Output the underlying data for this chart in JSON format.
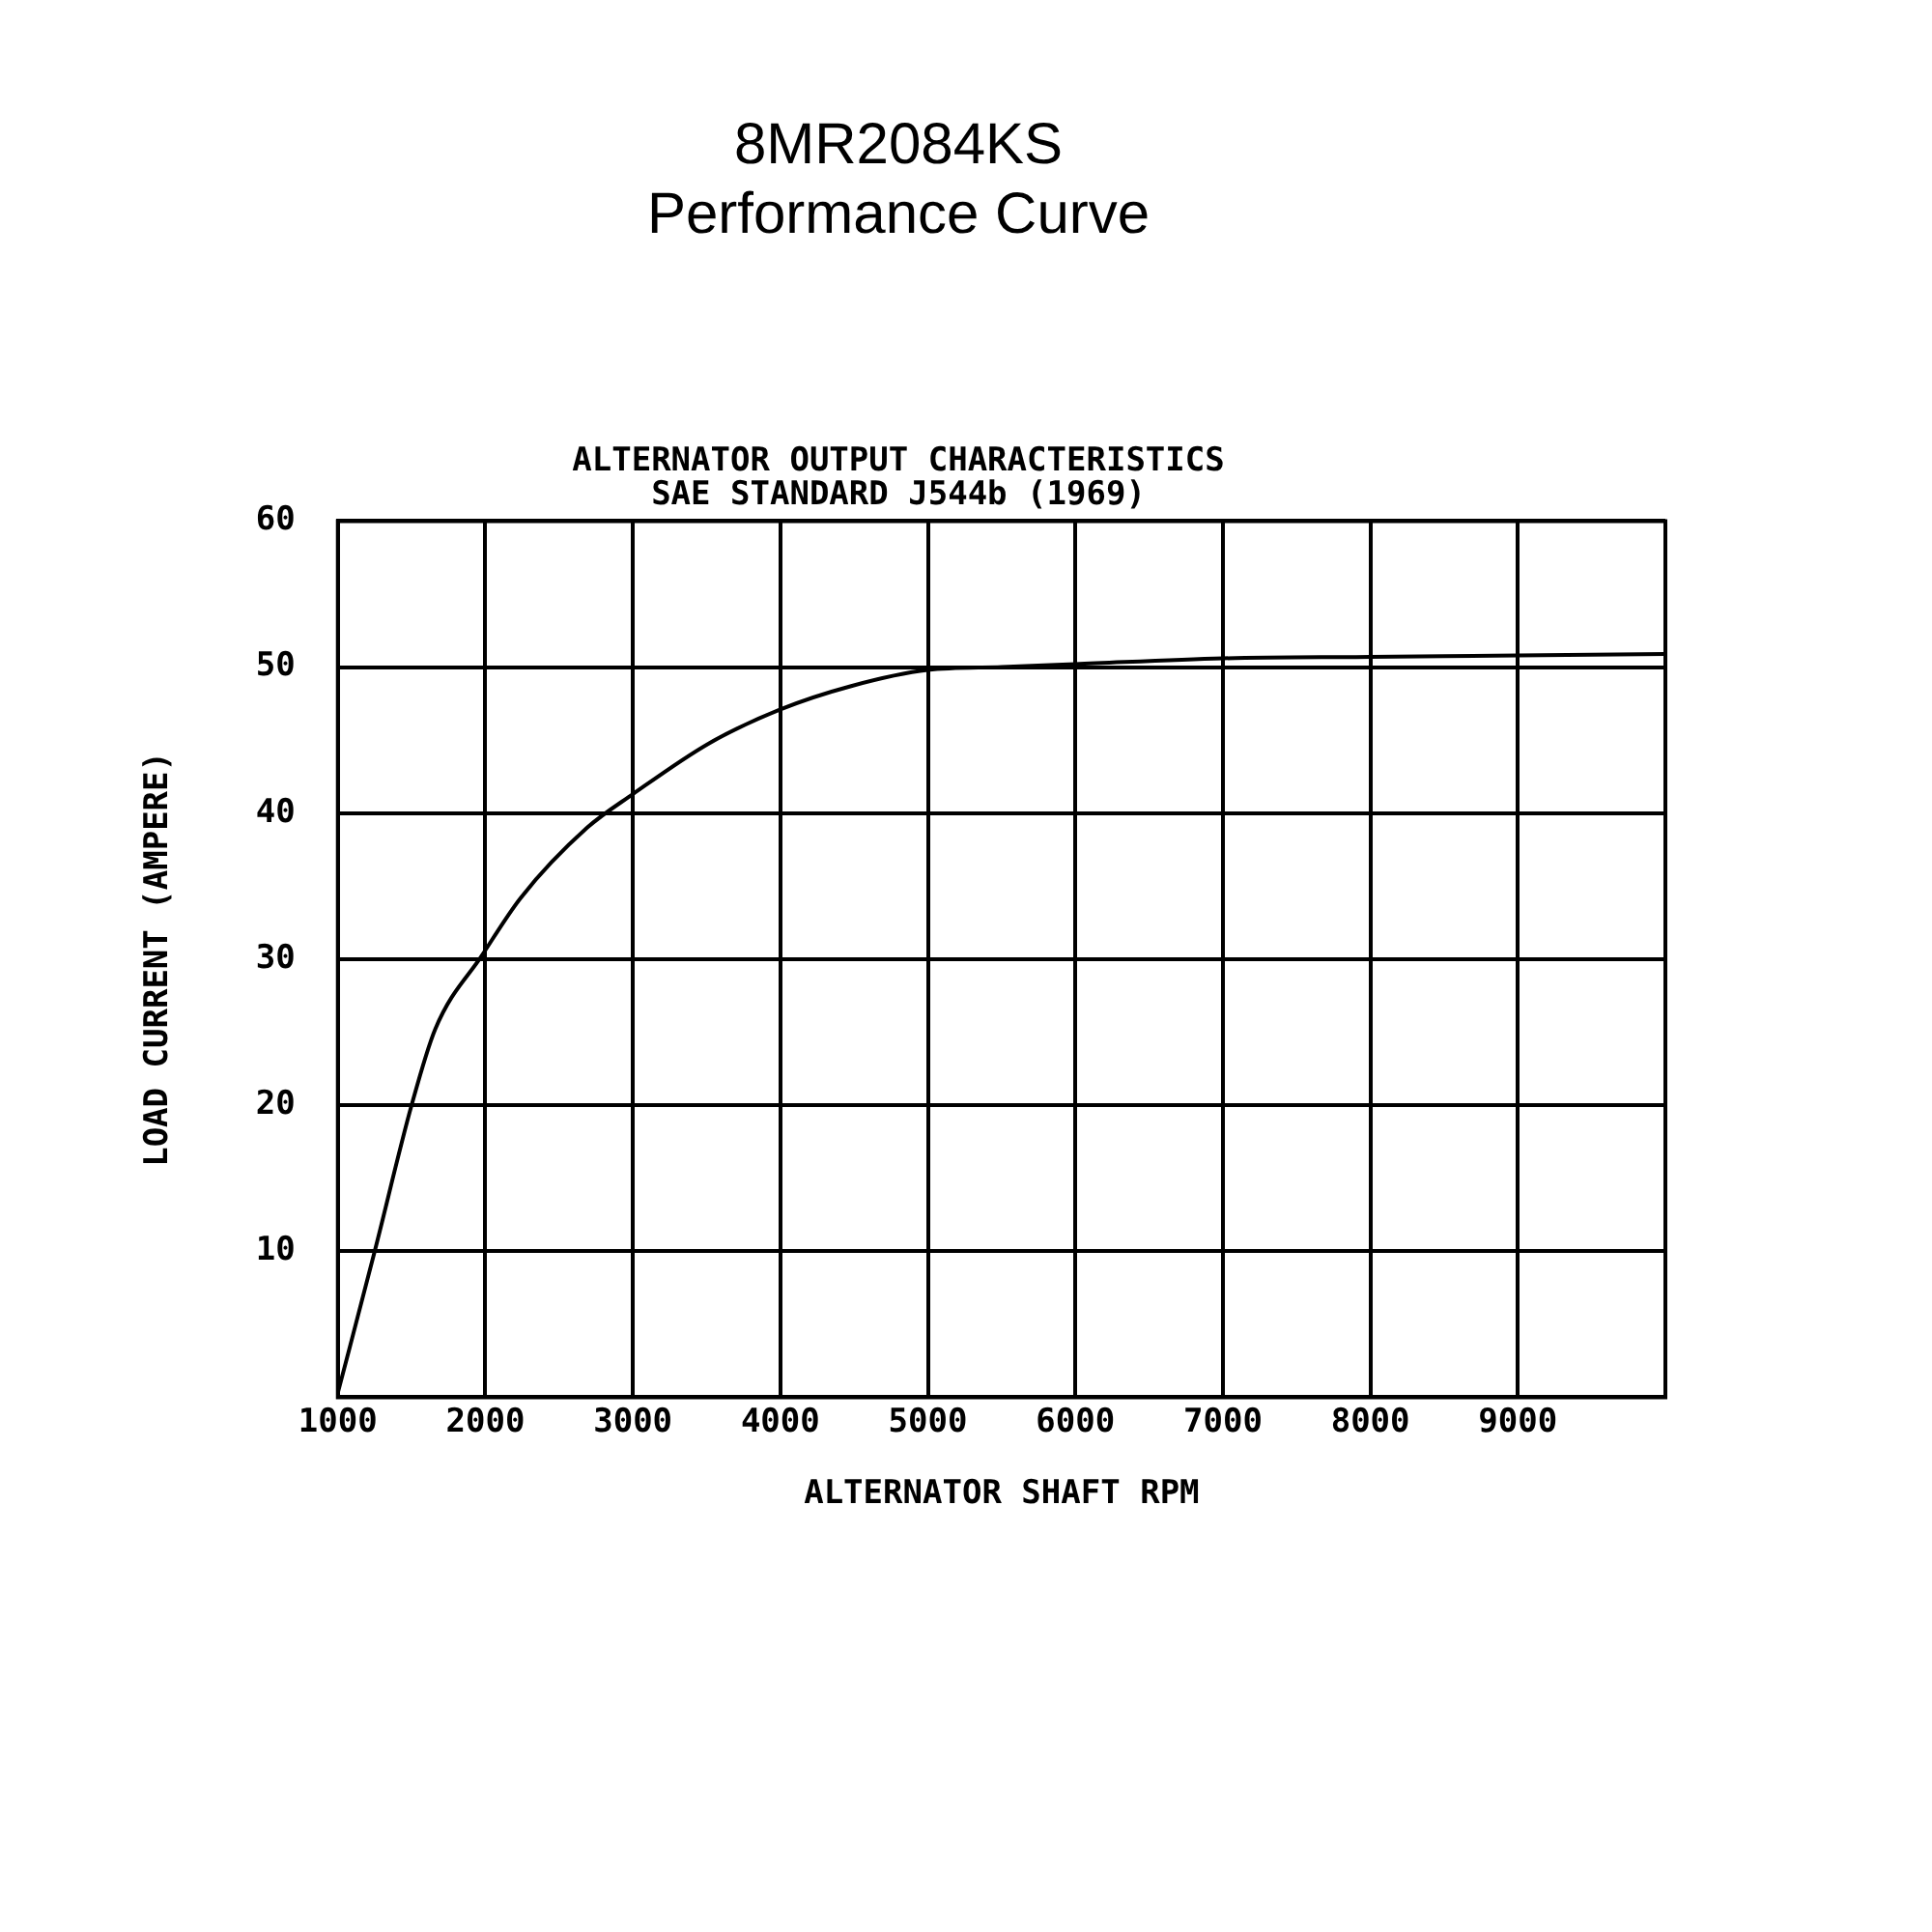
{
  "chart_data": {
    "type": "line",
    "title": "8MR2084KS\nPerformance Curve",
    "subtitle": "ALTERNATOR OUTPUT CHARACTERISTICS\nSAE STANDARD J544b (1969)",
    "xlabel": "ALTERNATOR SHAFT RPM",
    "ylabel": "LOAD CURRENT (AMPERE)",
    "series": [
      {
        "color": "#000000",
        "x": [
          1000,
          1250,
          1500,
          1660,
          1980,
          2240,
          2690,
          3000,
          3520,
          4000,
          4480,
          5000,
          5500,
          6000,
          7000,
          8000,
          9000,
          10000
        ],
        "values": [
          0.3,
          10,
          20,
          25.2,
          30.3,
          34.2,
          39,
          41.3,
          44.8,
          47.1,
          48.7,
          49.8,
          50,
          50.2,
          50.6,
          50.7,
          50.8,
          50.9
        ]
      }
    ],
    "xlim": [
      1000,
      10000
    ],
    "xticks": [
      1000,
      2000,
      3000,
      4000,
      5000,
      6000,
      7000,
      8000,
      9000,
      {
        "value": 10000,
        "label": null
      }
    ],
    "ylim": [
      0,
      60
    ],
    "yticks": [
      {
        "value": 0,
        "label": null
      },
      10,
      20,
      30,
      40,
      50,
      60
    ],
    "grid": true,
    "legend": false,
    "marker": "none",
    "line_style": "solid"
  }
}
